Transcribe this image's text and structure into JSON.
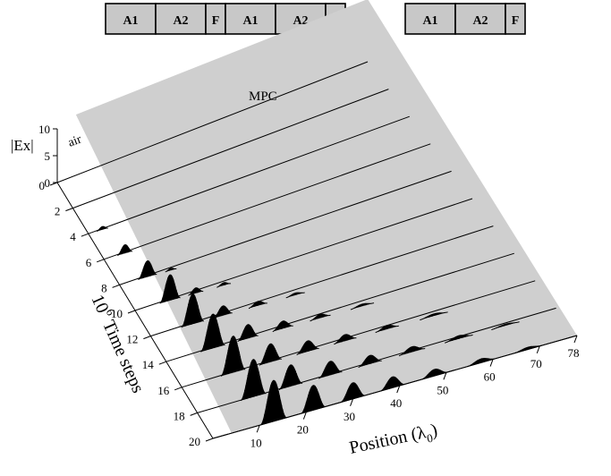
{
  "layer_strip": {
    "group_labels": [
      "A1",
      "A2",
      "F"
    ],
    "ellipsis": "• • •"
  },
  "labels": {
    "mpc": "MPC",
    "air": "air",
    "ex_axis_title": "|Ex|",
    "time_axis_title_base": "10",
    "time_axis_title_exp": "6",
    "time_axis_title_rest": " Time steps",
    "position_axis_title_base": "Position (λ",
    "position_axis_title_sub": "0",
    "position_axis_title_close": ")"
  },
  "chart_data": {
    "type": "waterfall",
    "ex_axis": {
      "ticks": [
        "0",
        "5",
        "10"
      ],
      "range": [
        0,
        10
      ]
    },
    "time_axis": {
      "ticks": [
        "0",
        "2",
        "4",
        "6",
        "8",
        "10",
        "12",
        "14",
        "16",
        "18",
        "20"
      ],
      "range": [
        0,
        20
      ]
    },
    "position_axis": {
      "ticks": [
        "10",
        "20",
        "30",
        "40",
        "50",
        "60",
        "70",
        "78"
      ],
      "range": [
        0,
        78
      ]
    },
    "traces": [
      {
        "time": 0,
        "envelope": []
      },
      {
        "time": 2,
        "envelope": []
      },
      {
        "time": 4,
        "envelope": [
          {
            "x": 3.0,
            "w": 1.2,
            "h": 0.6
          }
        ]
      },
      {
        "time": 6,
        "envelope": [
          {
            "x": 4.5,
            "w": 1.6,
            "h": 1.6
          }
        ]
      },
      {
        "time": 8,
        "envelope": [
          {
            "x": 6.0,
            "w": 2.0,
            "h": 3.0
          },
          {
            "x": 11.0,
            "w": 1.2,
            "h": 0.4
          }
        ]
      },
      {
        "time": 10,
        "envelope": [
          {
            "x": 7.5,
            "w": 2.2,
            "h": 4.8
          },
          {
            "x": 13.0,
            "w": 1.6,
            "h": 1.0
          },
          {
            "x": 19.0,
            "w": 1.5,
            "h": 0.5
          }
        ]
      },
      {
        "time": 12,
        "envelope": [
          {
            "x": 9.0,
            "w": 2.4,
            "h": 5.6
          },
          {
            "x": 15.5,
            "w": 2.0,
            "h": 1.8
          },
          {
            "x": 23.0,
            "w": 2.0,
            "h": 0.8
          },
          {
            "x": 31.0,
            "w": 2.0,
            "h": 0.4
          }
        ]
      },
      {
        "time": 14,
        "envelope": [
          {
            "x": 10.0,
            "w": 2.6,
            "h": 6.4
          },
          {
            "x": 17.5,
            "w": 2.2,
            "h": 2.6
          },
          {
            "x": 25.0,
            "w": 2.2,
            "h": 1.4
          },
          {
            "x": 33.0,
            "w": 2.2,
            "h": 0.7
          },
          {
            "x": 42.0,
            "w": 2.5,
            "h": 0.4
          }
        ]
      },
      {
        "time": 16,
        "envelope": [
          {
            "x": 11.0,
            "w": 2.6,
            "h": 6.8
          },
          {
            "x": 19.0,
            "w": 2.4,
            "h": 3.4
          },
          {
            "x": 27.0,
            "w": 2.4,
            "h": 2.0
          },
          {
            "x": 35.0,
            "w": 2.4,
            "h": 1.2
          },
          {
            "x": 44.0,
            "w": 2.5,
            "h": 0.7
          },
          {
            "x": 54.0,
            "w": 3.0,
            "h": 0.4
          }
        ]
      },
      {
        "time": 18,
        "envelope": [
          {
            "x": 12.0,
            "w": 2.7,
            "h": 7.0
          },
          {
            "x": 20.0,
            "w": 2.5,
            "h": 4.0
          },
          {
            "x": 28.5,
            "w": 2.5,
            "h": 2.6
          },
          {
            "x": 37.0,
            "w": 2.5,
            "h": 1.6
          },
          {
            "x": 46.0,
            "w": 2.8,
            "h": 1.0
          },
          {
            "x": 56.0,
            "w": 3.0,
            "h": 0.6
          },
          {
            "x": 66.0,
            "w": 3.0,
            "h": 0.3
          }
        ]
      },
      {
        "time": 20,
        "envelope": [
          {
            "x": 13.0,
            "w": 2.8,
            "h": 7.6
          },
          {
            "x": 21.5,
            "w": 2.6,
            "h": 4.6
          },
          {
            "x": 30.0,
            "w": 2.6,
            "h": 3.0
          },
          {
            "x": 38.5,
            "w": 2.6,
            "h": 2.0
          },
          {
            "x": 47.5,
            "w": 2.8,
            "h": 1.2
          },
          {
            "x": 57.5,
            "w": 3.0,
            "h": 0.7
          },
          {
            "x": 67.5,
            "w": 3.0,
            "h": 0.4
          }
        ]
      }
    ]
  }
}
